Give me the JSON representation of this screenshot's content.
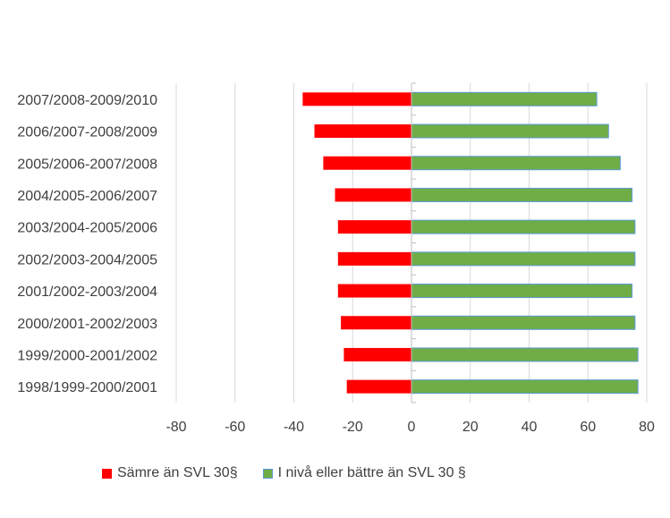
{
  "chart_data": {
    "type": "bar",
    "orientation": "horizontal",
    "stacked": true,
    "title": "",
    "xlabel": "",
    "ylabel": "",
    "xlim": [
      -80,
      80
    ],
    "xticks": [
      -80,
      -60,
      -40,
      -20,
      0,
      20,
      40,
      60,
      80
    ],
    "grid": true,
    "legend_position": "bottom",
    "categories": [
      "1998/1999-2000/2001",
      "1999/2000-2001/2002",
      "2000/2001-2002/2003",
      "2001/2002-2003/2004",
      "2002/2003-2004/2005",
      "2003/2004-2005/2006",
      "2004/2005-2006/2007",
      "2005/2006-2007/2008",
      "2006/2007-2008/2009",
      "2007/2008-2009/2010"
    ],
    "series": [
      {
        "name": "Sämre än SVL 30§",
        "color": "#FF0000",
        "values": [
          -22,
          -23,
          -24,
          -25,
          -25,
          -25,
          -26,
          -30,
          -33,
          -37
        ]
      },
      {
        "name": "I nivå eller bättre än SVL 30 §",
        "color": "#70AD47",
        "border": "#5B9BD5",
        "values": [
          77,
          77,
          76,
          75,
          76,
          76,
          75,
          71,
          67,
          63
        ]
      }
    ]
  }
}
